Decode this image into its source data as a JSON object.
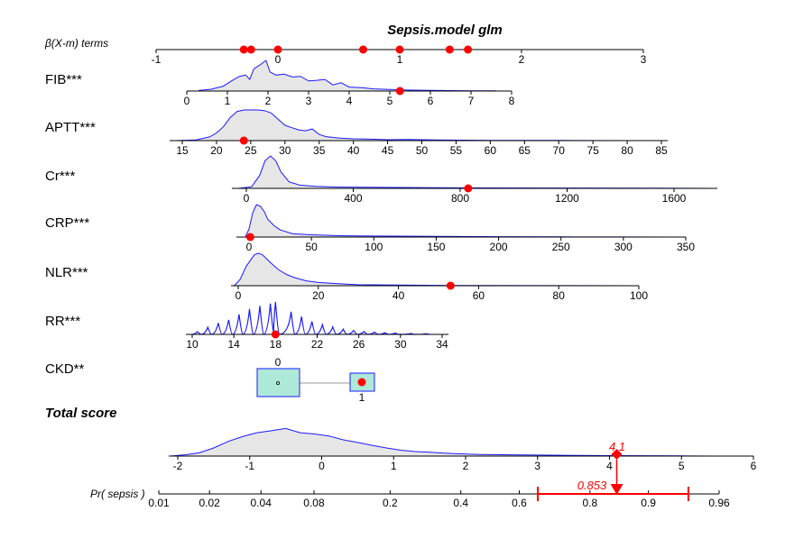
{
  "chart_data": {
    "type": "nomogram",
    "title": "Sepsis.model glm",
    "beta_axis": {
      "label": "β(X-m) terms",
      "ticks": [
        "-1",
        "0",
        "1",
        "2",
        "3"
      ],
      "values": [
        -1,
        0,
        1,
        2,
        3
      ],
      "points": [
        -0.28,
        -0.22,
        0.0,
        0.7,
        1.0,
        1.41,
        1.56
      ]
    },
    "variables": [
      {
        "key": "fib",
        "label": "FIB***",
        "ticks": [
          "0",
          "1",
          "2",
          "3",
          "4",
          "5",
          "6",
          "7",
          "8"
        ],
        "tick_values": [
          0,
          1,
          2,
          3,
          4,
          5,
          6,
          7,
          8
        ],
        "range": [
          0,
          8
        ],
        "value": 5.25,
        "density": [
          [
            0.3,
            0.02
          ],
          [
            0.6,
            0.06
          ],
          [
            0.9,
            0.16
          ],
          [
            1.1,
            0.33
          ],
          [
            1.3,
            0.48
          ],
          [
            1.45,
            0.52
          ],
          [
            1.55,
            0.38
          ],
          [
            1.65,
            0.72
          ],
          [
            1.8,
            0.85
          ],
          [
            1.95,
            1.0
          ],
          [
            2.05,
            0.62
          ],
          [
            2.2,
            0.52
          ],
          [
            2.4,
            0.55
          ],
          [
            2.6,
            0.46
          ],
          [
            2.8,
            0.48
          ],
          [
            3.0,
            0.33
          ],
          [
            3.2,
            0.35
          ],
          [
            3.4,
            0.38
          ],
          [
            3.6,
            0.2
          ],
          [
            3.8,
            0.27
          ],
          [
            4.0,
            0.13
          ],
          [
            4.3,
            0.11
          ],
          [
            4.6,
            0.07
          ],
          [
            5.0,
            0.05
          ],
          [
            5.5,
            0.03
          ],
          [
            6.0,
            0.02
          ],
          [
            7.0,
            0.01
          ],
          [
            7.6,
            0.005
          ]
        ]
      },
      {
        "key": "aptt",
        "label": "APTT***",
        "ticks": [
          "15",
          "20",
          "25",
          "30",
          "35",
          "40",
          "45",
          "50",
          "55",
          "60",
          "65",
          "70",
          "75",
          "80",
          "85"
        ],
        "tick_values": [
          15,
          20,
          25,
          30,
          35,
          40,
          45,
          50,
          55,
          60,
          65,
          70,
          75,
          80,
          85
        ],
        "range": [
          15,
          85
        ],
        "value": 24,
        "density": [
          [
            14,
            0.0
          ],
          [
            17,
            0.02
          ],
          [
            19,
            0.12
          ],
          [
            20,
            0.25
          ],
          [
            21,
            0.45
          ],
          [
            22,
            0.75
          ],
          [
            23,
            0.95
          ],
          [
            24,
            1.0
          ],
          [
            25,
            1.0
          ],
          [
            26,
            1.0
          ],
          [
            27,
            0.98
          ],
          [
            28,
            0.9
          ],
          [
            29,
            0.7
          ],
          [
            30,
            0.5
          ],
          [
            31,
            0.42
          ],
          [
            32,
            0.35
          ],
          [
            33,
            0.32
          ],
          [
            34,
            0.38
          ],
          [
            35,
            0.2
          ],
          [
            36,
            0.13
          ],
          [
            38,
            0.08
          ],
          [
            40,
            0.06
          ],
          [
            42,
            0.05
          ],
          [
            45,
            0.03
          ],
          [
            48,
            0.035
          ],
          [
            52,
            0.02
          ],
          [
            56,
            0.015
          ],
          [
            60,
            0.01
          ],
          [
            70,
            0.005
          ],
          [
            80,
            0.0
          ]
        ]
      },
      {
        "key": "cr",
        "label": "Cr***",
        "ticks": [
          "0",
          "400",
          "800",
          "1200",
          "1600"
        ],
        "tick_values": [
          0,
          400,
          800,
          1200,
          1600
        ],
        "range": [
          -50,
          1750
        ],
        "value": 830,
        "density": [
          [
            -30,
            0.0
          ],
          [
            20,
            0.05
          ],
          [
            50,
            0.4
          ],
          [
            70,
            0.85
          ],
          [
            90,
            1.0
          ],
          [
            110,
            0.85
          ],
          [
            130,
            0.5
          ],
          [
            160,
            0.2
          ],
          [
            200,
            0.1
          ],
          [
            260,
            0.06
          ],
          [
            350,
            0.04
          ],
          [
            500,
            0.03
          ],
          [
            700,
            0.02
          ],
          [
            900,
            0.015
          ],
          [
            1200,
            0.01
          ],
          [
            1500,
            0.006
          ],
          [
            1750,
            0.0
          ]
        ]
      },
      {
        "key": "crp",
        "label": "CRP***",
        "ticks": [
          "0",
          "50",
          "100",
          "150",
          "200",
          "250",
          "300",
          "350"
        ],
        "tick_values": [
          0,
          50,
          100,
          150,
          200,
          250,
          300,
          350
        ],
        "range": [
          -5,
          350
        ],
        "value": 1,
        "density": [
          [
            -3,
            0.0
          ],
          [
            0,
            0.25
          ],
          [
            3,
            0.75
          ],
          [
            6,
            1.0
          ],
          [
            9,
            0.95
          ],
          [
            12,
            0.8
          ],
          [
            15,
            0.55
          ],
          [
            20,
            0.35
          ],
          [
            25,
            0.22
          ],
          [
            35,
            0.1
          ],
          [
            50,
            0.07
          ],
          [
            75,
            0.04
          ],
          [
            100,
            0.03
          ],
          [
            150,
            0.02
          ],
          [
            200,
            0.01
          ],
          [
            250,
            0.005
          ],
          [
            300,
            0.003
          ],
          [
            340,
            0.0
          ]
        ]
      },
      {
        "key": "nlr",
        "label": "NLR***",
        "ticks": [
          "0",
          "20",
          "40",
          "60",
          "80",
          "100"
        ],
        "tick_values": [
          0,
          20,
          40,
          60,
          80,
          100
        ],
        "range": [
          -2,
          100
        ],
        "value": 53,
        "density": [
          [
            -1,
            0.0
          ],
          [
            0.5,
            0.2
          ],
          [
            2,
            0.6
          ],
          [
            4,
            0.95
          ],
          [
            5,
            1.0
          ],
          [
            6,
            0.96
          ],
          [
            8,
            0.72
          ],
          [
            10,
            0.5
          ],
          [
            12,
            0.35
          ],
          [
            14,
            0.25
          ],
          [
            17,
            0.15
          ],
          [
            20,
            0.1
          ],
          [
            25,
            0.06
          ],
          [
            30,
            0.03
          ],
          [
            40,
            0.02
          ],
          [
            50,
            0.01
          ],
          [
            60,
            0.005
          ],
          [
            80,
            0.002
          ],
          [
            98,
            0.0
          ]
        ]
      },
      {
        "key": "rr",
        "label": "RR***",
        "ticks": [
          "10",
          "14",
          "18",
          "22",
          "26",
          "30",
          "34"
        ],
        "tick_values": [
          10,
          14,
          18,
          22,
          26,
          30,
          34
        ],
        "range": [
          10,
          34
        ],
        "value": 18,
        "density_peaks": [
          [
            10.5,
            0.08
          ],
          [
            11.5,
            0.22
          ],
          [
            12.5,
            0.35
          ],
          [
            13.5,
            0.45
          ],
          [
            14.5,
            0.62
          ],
          [
            15.5,
            0.78
          ],
          [
            16.5,
            0.88
          ],
          [
            17.5,
            0.95
          ],
          [
            18,
            1.0
          ],
          [
            19.5,
            0.7
          ],
          [
            20.5,
            0.55
          ],
          [
            21.5,
            0.4
          ],
          [
            22.5,
            0.3
          ],
          [
            23.5,
            0.23
          ],
          [
            24.5,
            0.16
          ],
          [
            25.5,
            0.12
          ],
          [
            26.5,
            0.09
          ],
          [
            27.5,
            0.07
          ],
          [
            28.5,
            0.05
          ],
          [
            29.5,
            0.04
          ],
          [
            31,
            0.03
          ],
          [
            32.5,
            0.02
          ]
        ]
      },
      {
        "key": "ckd",
        "label": "CKD**",
        "categories": [
          "0",
          "1"
        ],
        "value": "1",
        "box_beta": [
          0.0,
          0.69
        ]
      }
    ],
    "total_score": {
      "label": "Total score",
      "ticks": [
        "-2",
        "-1",
        "0",
        "1",
        "2",
        "3",
        "4",
        "5",
        "6"
      ],
      "tick_values": [
        -2,
        -1,
        0,
        1,
        2,
        3,
        4,
        5,
        6
      ],
      "value": 4.1,
      "value_label": "4.1",
      "density": [
        [
          -2.1,
          0.0
        ],
        [
          -1.9,
          0.04
        ],
        [
          -1.7,
          0.1
        ],
        [
          -1.5,
          0.25
        ],
        [
          -1.3,
          0.45
        ],
        [
          -1.1,
          0.6
        ],
        [
          -0.9,
          0.72
        ],
        [
          -0.7,
          0.78
        ],
        [
          -0.5,
          0.85
        ],
        [
          -0.3,
          0.72
        ],
        [
          -0.1,
          0.68
        ],
        [
          0.1,
          0.62
        ],
        [
          0.3,
          0.5
        ],
        [
          0.5,
          0.42
        ],
        [
          0.7,
          0.33
        ],
        [
          0.9,
          0.25
        ],
        [
          1.1,
          0.18
        ],
        [
          1.3,
          0.14
        ],
        [
          1.5,
          0.12
        ],
        [
          1.7,
          0.09
        ],
        [
          1.9,
          0.07
        ],
        [
          2.2,
          0.05
        ],
        [
          2.6,
          0.04
        ],
        [
          3.0,
          0.03
        ],
        [
          3.5,
          0.02
        ],
        [
          4.0,
          0.015
        ],
        [
          4.5,
          0.01
        ],
        [
          5.0,
          0.006
        ],
        [
          5.5,
          0.0
        ]
      ]
    },
    "probability": {
      "label": "Pr( sepsis )",
      "ticks": [
        "0.01",
        "0.02",
        "0.04",
        "0.08",
        "0.2",
        "0.4",
        "0.6",
        "0.8",
        "0.9",
        "0.96"
      ],
      "tick_values": [
        0.01,
        0.02,
        0.04,
        0.08,
        0.2,
        0.4,
        0.6,
        0.8,
        0.9,
        0.96
      ],
      "value": 0.853,
      "value_label": "0.853",
      "ci": [
        0.66,
        0.94
      ]
    }
  }
}
